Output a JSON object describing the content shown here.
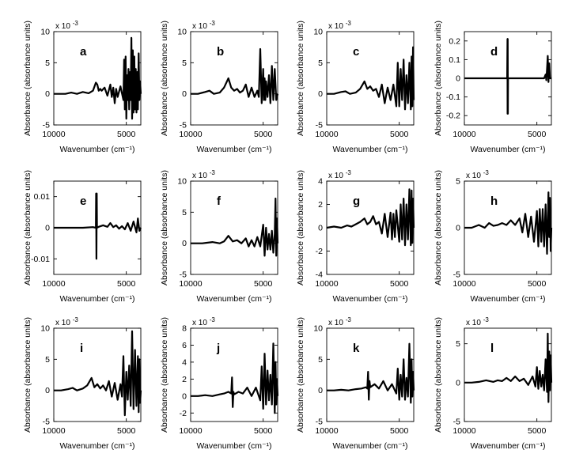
{
  "chart_data": [
    {
      "type": "line",
      "label": "a",
      "xlabel": "Wavenumber (cm⁻¹)",
      "ylabel": "Absorbance (absorbance units)",
      "exponent": "x 10",
      "exponent_power": "-3",
      "xticks": [
        "10000",
        "5000"
      ],
      "x_reversed": true,
      "xlim": [
        10000,
        4000
      ],
      "ylim": [
        -5,
        10
      ],
      "yticks": [
        {
          "v": -5,
          "t": "-5"
        },
        {
          "v": 0,
          "t": "0"
        },
        {
          "v": 5,
          "t": "5"
        },
        {
          "v": 10,
          "t": "10"
        }
      ],
      "x": [
        10000,
        9600,
        9200,
        8800,
        8400,
        8000,
        7600,
        7300,
        7100,
        7000,
        6900,
        6800,
        6700,
        6500,
        6300,
        6100,
        6000,
        5900,
        5800,
        5700,
        5600,
        5400,
        5200,
        5150,
        5100,
        5050,
        5000,
        4950,
        4900,
        4850,
        4800,
        4750,
        4700,
        4650,
        4600,
        4550,
        4500,
        4450,
        4400,
        4350,
        4300,
        4250,
        4200,
        4150,
        4100,
        4050,
        4000
      ],
      "y": [
        0,
        0,
        0,
        0.2,
        0,
        0.3,
        0.1,
        0.5,
        1.8,
        1.5,
        0.5,
        0.8,
        0.5,
        1,
        -0.3,
        1.5,
        -0.5,
        1,
        -1.5,
        0.8,
        -0.5,
        1.2,
        -1,
        5.5,
        -2.5,
        6,
        -4,
        3,
        -1,
        4,
        -2.5,
        3.5,
        -1,
        9,
        -4,
        7,
        -3,
        6,
        -2.5,
        4,
        -3,
        3.5,
        -2.5,
        6.5,
        -1,
        2,
        0
      ]
    },
    {
      "type": "line",
      "label": "b",
      "xlabel": "Wavenumber (cm⁻¹)",
      "ylabel": "Absorbance (absorbance units)",
      "exponent": "x 10",
      "exponent_power": "-3",
      "xticks": [
        "10000",
        "5000"
      ],
      "x_reversed": true,
      "xlim": [
        10000,
        4000
      ],
      "ylim": [
        -5,
        10
      ],
      "yticks": [
        {
          "v": -5,
          "t": "-5"
        },
        {
          "v": 0,
          "t": "0"
        },
        {
          "v": 5,
          "t": "5"
        },
        {
          "v": 10,
          "t": "10"
        }
      ],
      "x": [
        10000,
        9500,
        9000,
        8700,
        8400,
        8000,
        7700,
        7400,
        7200,
        7000,
        6800,
        6600,
        6400,
        6200,
        6000,
        5800,
        5600,
        5400,
        5300,
        5200,
        5100,
        5000,
        4950,
        4900,
        4850,
        4800,
        4700,
        4600,
        4500,
        4400,
        4300,
        4200,
        4100,
        4000
      ],
      "y": [
        0,
        0,
        0.3,
        0.5,
        0,
        0.2,
        1,
        2.5,
        1,
        0.5,
        0.8,
        0.2,
        0.5,
        1.5,
        -0.5,
        1,
        -0.5,
        0.5,
        -0.5,
        7.2,
        -1.5,
        4,
        -1,
        2.5,
        -1,
        2,
        -0.5,
        3,
        -1.5,
        4.5,
        -1,
        4,
        -1,
        0
      ]
    },
    {
      "type": "line",
      "label": "c",
      "xlabel": "Wavenumber (cm⁻¹)",
      "ylabel": "Absorbance (absorbance units)",
      "exponent": "x 10",
      "exponent_power": "-3",
      "xticks": [
        "10000",
        "5000"
      ],
      "x_reversed": true,
      "xlim": [
        10000,
        4000
      ],
      "ylim": [
        -5,
        10
      ],
      "yticks": [
        {
          "v": -5,
          "t": "-5"
        },
        {
          "v": 0,
          "t": "0"
        },
        {
          "v": 5,
          "t": "5"
        },
        {
          "v": 10,
          "t": "10"
        }
      ],
      "x": [
        10000,
        9500,
        9000,
        8700,
        8400,
        8000,
        7700,
        7400,
        7200,
        7000,
        6800,
        6600,
        6400,
        6200,
        6000,
        5800,
        5600,
        5400,
        5200,
        5100,
        5000,
        4900,
        4800,
        4700,
        4600,
        4500,
        4400,
        4300,
        4200,
        4150,
        4100,
        4050,
        4000
      ],
      "y": [
        0,
        0,
        0.3,
        0.4,
        0,
        0.2,
        0.8,
        2,
        0.8,
        1.2,
        0.5,
        0.8,
        -0.5,
        1.5,
        -1.5,
        1,
        -1,
        1.5,
        -2,
        5,
        -2,
        4,
        -1,
        5.5,
        -2.5,
        3,
        -1.5,
        5,
        -2.5,
        6,
        -2,
        7.5,
        -1
      ]
    },
    {
      "type": "line",
      "label": "d",
      "xlabel": "Wavenumber (cm⁻¹)",
      "ylabel": "Absorbance (absorbance units)",
      "exponent": "",
      "exponent_power": "",
      "xticks": [
        "10000",
        "5000"
      ],
      "x_reversed": true,
      "xlim": [
        10000,
        4000
      ],
      "ylim": [
        -0.25,
        0.25
      ],
      "yticks": [
        {
          "v": -0.2,
          "t": "-0.2"
        },
        {
          "v": -0.1,
          "t": "-0.1"
        },
        {
          "v": 0,
          "t": "0"
        },
        {
          "v": 0.1,
          "t": "0.1"
        },
        {
          "v": 0.2,
          "t": "0.2"
        }
      ],
      "x": [
        10000,
        9000,
        8000,
        7050,
        7030,
        7020,
        7010,
        7000,
        6990,
        6000,
        5000,
        4500,
        4400,
        4350,
        4300,
        4250,
        4200,
        4150,
        4100,
        4000
      ],
      "y": [
        0,
        0,
        0,
        0,
        0.21,
        -0.19,
        0.21,
        -0.19,
        0,
        0,
        0,
        0,
        0.02,
        -0.01,
        0.05,
        0.12,
        -0.02,
        0.08,
        0,
        0
      ]
    },
    {
      "type": "line",
      "label": "e",
      "xlabel": "Wavenumber (cm⁻¹)",
      "ylabel": "Absorbance (absorbance units)",
      "exponent": "",
      "exponent_power": "",
      "xticks": [
        "10000",
        "5000"
      ],
      "x_reversed": true,
      "xlim": [
        10000,
        4000
      ],
      "ylim": [
        -0.015,
        0.015
      ],
      "yticks": [
        {
          "v": -0.01,
          "t": "-0.01"
        },
        {
          "v": 0,
          "t": "0"
        },
        {
          "v": 0.01,
          "t": "0.01"
        }
      ],
      "x": [
        10000,
        9000,
        8000,
        7300,
        7100,
        7080,
        7060,
        7040,
        7020,
        6900,
        6600,
        6300,
        6100,
        5900,
        5700,
        5500,
        5300,
        5100,
        4900,
        4700,
        4500,
        4300,
        4200,
        4100,
        4000
      ],
      "y": [
        0,
        0,
        0,
        0.0002,
        0,
        0.011,
        -0.01,
        0.011,
        0,
        0.0003,
        0.0008,
        0.0003,
        0.0015,
        0.0002,
        0.0008,
        -0.0003,
        0.0005,
        -0.0005,
        0.0015,
        -0.001,
        0.002,
        -0.0015,
        0.003,
        -0.001,
        0
      ]
    },
    {
      "type": "line",
      "label": "f",
      "xlabel": "Wavenumber (cm⁻¹)",
      "ylabel": "Absorbance (absorbance units)",
      "exponent": "x 10",
      "exponent_power": "-3",
      "xticks": [
        "10000",
        "5000"
      ],
      "x_reversed": true,
      "xlim": [
        10000,
        4000
      ],
      "ylim": [
        -5,
        10
      ],
      "yticks": [
        {
          "v": -5,
          "t": "-5"
        },
        {
          "v": 0,
          "t": "0"
        },
        {
          "v": 5,
          "t": "5"
        },
        {
          "v": 10,
          "t": "10"
        }
      ],
      "x": [
        10000,
        9200,
        8500,
        8000,
        7700,
        7400,
        7100,
        6800,
        6500,
        6200,
        6000,
        5800,
        5600,
        5400,
        5200,
        5000,
        4900,
        4800,
        4700,
        4600,
        4500,
        4400,
        4300,
        4200,
        4150,
        4100,
        4050,
        4000
      ],
      "y": [
        0,
        0,
        0.2,
        0,
        0.3,
        1.2,
        0.3,
        0.5,
        0,
        0.8,
        -0.5,
        0.5,
        -0.5,
        1,
        -0.5,
        3,
        -2,
        2.5,
        -1,
        1.5,
        -1,
        2,
        -1.5,
        1.5,
        7.2,
        -2,
        4,
        0
      ]
    },
    {
      "type": "line",
      "label": "g",
      "xlabel": "Wavenumber (cm⁻¹)",
      "ylabel": "Absorbance (absorbance units)",
      "exponent": "x 10",
      "exponent_power": "-3",
      "xticks": [
        "10000",
        "5000"
      ],
      "x_reversed": true,
      "xlim": [
        10000,
        4000
      ],
      "ylim": [
        -4,
        4
      ],
      "yticks": [
        {
          "v": -4,
          "t": "-4"
        },
        {
          "v": -2,
          "t": "-2"
        },
        {
          "v": 0,
          "t": "0"
        },
        {
          "v": 2,
          "t": "2"
        },
        {
          "v": 4,
          "t": "4"
        }
      ],
      "x": [
        10000,
        9500,
        9000,
        8600,
        8300,
        8000,
        7700,
        7400,
        7200,
        7000,
        6800,
        6600,
        6400,
        6200,
        6000,
        5800,
        5600,
        5500,
        5400,
        5300,
        5200,
        5000,
        4900,
        4800,
        4700,
        4600,
        4500,
        4400,
        4300,
        4200,
        4150,
        4100,
        4050,
        4000
      ],
      "y": [
        0,
        0.1,
        0,
        0.2,
        0.1,
        0.3,
        0.5,
        0.8,
        0.3,
        0.5,
        1,
        0.3,
        0.5,
        -0.5,
        1.2,
        -0.8,
        1.3,
        -1,
        1.2,
        -0.8,
        1.5,
        -1.2,
        2,
        -1,
        2.5,
        -1.5,
        2,
        -1,
        3.3,
        -1.5,
        3.2,
        -1.3,
        2.5,
        0
      ]
    },
    {
      "type": "line",
      "label": "h",
      "xlabel": "Wavenumber (cm⁻¹)",
      "ylabel": "Absorbance (absorbance units)",
      "exponent": "x 10",
      "exponent_power": "-3",
      "xticks": [
        "10000",
        "5000"
      ],
      "x_reversed": true,
      "xlim": [
        10000,
        4000
      ],
      "ylim": [
        -5,
        5
      ],
      "yticks": [
        {
          "v": -5,
          "t": "-5"
        },
        {
          "v": 0,
          "t": "0"
        },
        {
          "v": 5,
          "t": "5"
        }
      ],
      "x": [
        10000,
        9500,
        9000,
        8600,
        8300,
        8000,
        7700,
        7400,
        7100,
        6800,
        6500,
        6200,
        6000,
        5800,
        5600,
        5400,
        5200,
        5000,
        4900,
        4800,
        4700,
        4600,
        4500,
        4400,
        4300,
        4200,
        4150,
        4100,
        4050,
        4000
      ],
      "y": [
        0,
        0,
        0.3,
        0,
        0.5,
        0.2,
        0.3,
        0.5,
        0.3,
        0.8,
        0.3,
        1,
        -0.5,
        1.5,
        -1,
        1.2,
        -1.5,
        1.8,
        -2,
        2,
        -1.5,
        2,
        -2,
        2.5,
        -2.8,
        3.8,
        -1,
        3.2,
        -2.5,
        0
      ]
    },
    {
      "type": "line",
      "label": "i",
      "xlabel": "Wavenumber (cm⁻¹)",
      "ylabel": "Absorbance (absorbance units)",
      "exponent": "x 10",
      "exponent_power": "-3",
      "xticks": [
        "10000",
        "5000"
      ],
      "x_reversed": true,
      "xlim": [
        10000,
        4000
      ],
      "ylim": [
        -5,
        10
      ],
      "yticks": [
        {
          "v": -5,
          "t": "-5"
        },
        {
          "v": 0,
          "t": "0"
        },
        {
          "v": 5,
          "t": "5"
        },
        {
          "v": 10,
          "t": "10"
        }
      ],
      "x": [
        10000,
        9500,
        9000,
        8700,
        8400,
        8000,
        7700,
        7400,
        7200,
        7000,
        6800,
        6600,
        6400,
        6200,
        6000,
        5800,
        5600,
        5400,
        5300,
        5200,
        5100,
        5000,
        4900,
        4800,
        4700,
        4600,
        4500,
        4400,
        4300,
        4200,
        4150,
        4100,
        4050,
        4000
      ],
      "y": [
        0,
        0,
        0.2,
        0.4,
        0,
        0.3,
        0.8,
        2,
        0.5,
        1,
        0.3,
        0.8,
        0,
        1.5,
        -1,
        1.2,
        -1.5,
        1,
        -1,
        5.5,
        -4,
        3,
        -1.5,
        4,
        -2.5,
        9.5,
        -3,
        6.5,
        -2.5,
        5.5,
        -3.5,
        5,
        -2,
        0
      ]
    },
    {
      "type": "line",
      "label": "j",
      "xlabel": "Wavenumber (cm⁻¹)",
      "ylabel": "Absorbance (absorbance units)",
      "exponent": "x 10",
      "exponent_power": "-3",
      "xticks": [
        "10000",
        "5000"
      ],
      "x_reversed": true,
      "xlim": [
        10000,
        4000
      ],
      "ylim": [
        -3,
        8
      ],
      "yticks": [
        {
          "v": -2,
          "t": "-2"
        },
        {
          "v": 0,
          "t": "0"
        },
        {
          "v": 2,
          "t": "2"
        },
        {
          "v": 4,
          "t": "4"
        },
        {
          "v": 6,
          "t": "6"
        },
        {
          "v": 8,
          "t": "8"
        }
      ],
      "x": [
        10000,
        9500,
        9000,
        8500,
        8000,
        7700,
        7400,
        7200,
        7150,
        7100,
        7050,
        7000,
        6700,
        6400,
        6100,
        5800,
        5500,
        5200,
        5100,
        5000,
        4900,
        4800,
        4700,
        4600,
        4500,
        4400,
        4300,
        4200,
        4150,
        4100,
        4050,
        4000
      ],
      "y": [
        0,
        0,
        0.1,
        0,
        0.2,
        0.3,
        0.5,
        0.3,
        2.2,
        -1.3,
        0.5,
        0.2,
        0.5,
        0.3,
        1,
        0,
        1,
        -0.5,
        3.5,
        -1.5,
        5,
        -1,
        3,
        -0.5,
        2.5,
        -1,
        6.2,
        -2,
        4,
        -1,
        2,
        0
      ]
    },
    {
      "type": "line",
      "label": "k",
      "xlabel": "Wavenumber (cm⁻¹)",
      "ylabel": "Absorbance (absorbance units)",
      "exponent": "x 10",
      "exponent_power": "-3",
      "xticks": [
        "10000",
        "5000"
      ],
      "x_reversed": true,
      "xlim": [
        10000,
        4000
      ],
      "ylim": [
        -5,
        10
      ],
      "yticks": [
        {
          "v": -5,
          "t": "-5"
        },
        {
          "v": 0,
          "t": "0"
        },
        {
          "v": 5,
          "t": "5"
        },
        {
          "v": 10,
          "t": "10"
        }
      ],
      "x": [
        10000,
        9500,
        9000,
        8500,
        8000,
        7600,
        7300,
        7200,
        7150,
        7100,
        7050,
        7000,
        6700,
        6400,
        6100,
        5800,
        5500,
        5200,
        5100,
        5000,
        4900,
        4800,
        4700,
        4600,
        4500,
        4400,
        4300,
        4200,
        4150,
        4100,
        4050,
        4000
      ],
      "y": [
        0,
        0,
        0.1,
        0,
        0.2,
        0.3,
        0.5,
        0.3,
        3,
        -1.5,
        1.5,
        0.5,
        1,
        0.3,
        1.5,
        0,
        1,
        -0.5,
        3.5,
        -1.5,
        2.5,
        -1,
        5,
        -1.5,
        2,
        -1,
        7.5,
        -2,
        5,
        -1,
        3,
        0
      ]
    },
    {
      "type": "line",
      "label": "l",
      "xlabel": "Wavenumber (cm⁻¹)",
      "ylabel": "Absorbance (absorbance units)",
      "exponent": "x 10",
      "exponent_power": "-3",
      "xticks": [
        "10000",
        "5000"
      ],
      "x_reversed": true,
      "xlim": [
        10000,
        4000
      ],
      "ylim": [
        -5,
        7
      ],
      "yticks": [
        {
          "v": -5,
          "t": "-5"
        },
        {
          "v": 0,
          "t": "0"
        },
        {
          "v": 5,
          "t": "5"
        }
      ],
      "x": [
        10000,
        9500,
        9000,
        8500,
        8000,
        7700,
        7400,
        7100,
        6800,
        6500,
        6200,
        5900,
        5600,
        5300,
        5100,
        5000,
        4900,
        4800,
        4700,
        4600,
        4500,
        4400,
        4300,
        4250,
        4200,
        4150,
        4100,
        4050,
        4000
      ],
      "y": [
        0,
        0,
        0.1,
        0.3,
        0.1,
        0.3,
        0.2,
        0.6,
        0.2,
        0.8,
        0.2,
        0.5,
        -0.3,
        0.8,
        -0.5,
        2,
        -0.8,
        1.5,
        -0.5,
        1,
        -1,
        3,
        -1.2,
        6.3,
        -2.5,
        4,
        -1,
        3.5,
        0
      ]
    }
  ]
}
